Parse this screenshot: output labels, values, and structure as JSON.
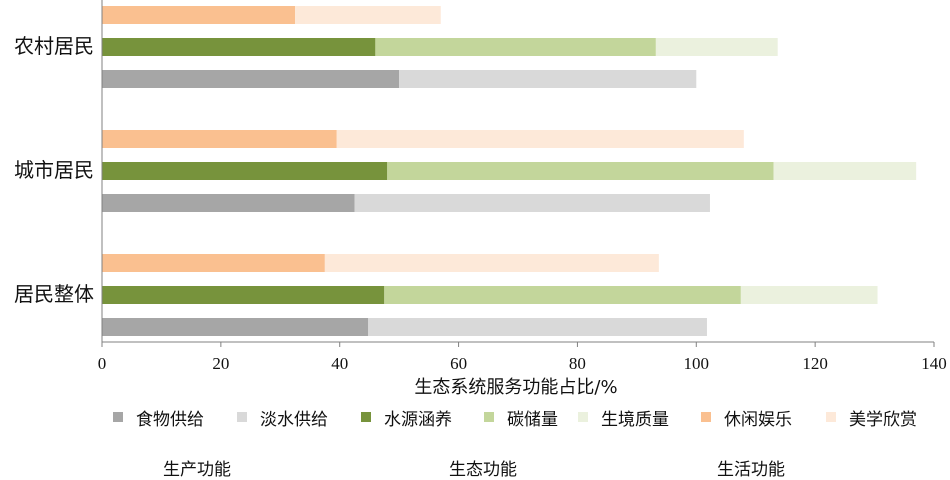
{
  "chart_data": {
    "type": "bar",
    "orientation": "horizontal",
    "stacked": true,
    "xlabel": "生态系统服务功能占比/%",
    "xlim": [
      0,
      140
    ],
    "xticks": [
      0,
      20,
      40,
      60,
      80,
      100,
      120,
      140
    ],
    "groups": [
      {
        "label": "农村居民",
        "bars": [
          {
            "category": "生活功能",
            "segments": [
              {
                "name": "休闲娱乐",
                "value": 32.5
              },
              {
                "name": "美学欣赏",
                "value": 24.5
              }
            ]
          },
          {
            "category": "生态功能",
            "segments": [
              {
                "name": "水源涵养",
                "value": 46.0
              },
              {
                "name": "碳储量",
                "value": 47.2
              },
              {
                "name": "生境质量",
                "value": 20.5
              }
            ]
          },
          {
            "category": "生产功能",
            "segments": [
              {
                "name": "食物供给",
                "value": 50.0
              },
              {
                "name": "淡水供给",
                "value": 50.0
              }
            ]
          }
        ]
      },
      {
        "label": "城市居民",
        "bars": [
          {
            "category": "生活功能",
            "segments": [
              {
                "name": "休闲娱乐",
                "value": 39.5
              },
              {
                "name": "美学欣赏",
                "value": 68.5
              }
            ]
          },
          {
            "category": "生态功能",
            "segments": [
              {
                "name": "水源涵养",
                "value": 48.0
              },
              {
                "name": "碳储量",
                "value": 65.0
              },
              {
                "name": "生境质量",
                "value": 24.0
              }
            ]
          },
          {
            "category": "生产功能",
            "segments": [
              {
                "name": "食物供给",
                "value": 42.5
              },
              {
                "name": "淡水供给",
                "value": 59.8
              }
            ]
          }
        ]
      },
      {
        "label": "居民整体",
        "bars": [
          {
            "category": "生活功能",
            "segments": [
              {
                "name": "休闲娱乐",
                "value": 37.5
              },
              {
                "name": "美学欣赏",
                "value": 56.2
              }
            ]
          },
          {
            "category": "生态功能",
            "segments": [
              {
                "name": "水源涵养",
                "value": 47.5
              },
              {
                "name": "碳储量",
                "value": 60.0
              },
              {
                "name": "生境质量",
                "value": 23.0
              }
            ]
          },
          {
            "category": "生产功能",
            "segments": [
              {
                "name": "食物供给",
                "value": 44.8
              },
              {
                "name": "淡水供给",
                "value": 57.0
              }
            ]
          }
        ]
      }
    ],
    "legend": {
      "placement": "bottom",
      "items": [
        {
          "name": "食物供给",
          "color": "#a6a6a6"
        },
        {
          "name": "淡水供给",
          "color": "#d9d9d9"
        },
        {
          "name": "水源涵养",
          "color": "#77933c"
        },
        {
          "name": "碳储量",
          "color": "#c3d69b"
        },
        {
          "name": "生境质量",
          "color": "#ebf1de"
        },
        {
          "name": "休闲娱乐",
          "color": "#fac090"
        },
        {
          "name": "美学欣赏",
          "color": "#fde9d9"
        }
      ],
      "group_titles": [
        "生产功能",
        "生态功能",
        "生活功能"
      ]
    },
    "grid": false
  }
}
